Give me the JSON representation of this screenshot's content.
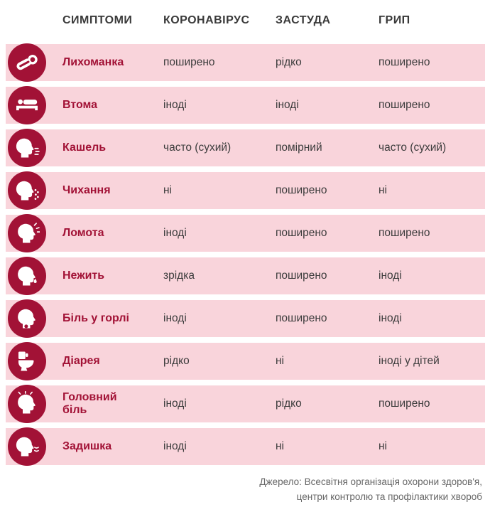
{
  "chart_data": {
    "type": "table",
    "columns": [
      "СИМПТОМИ",
      "КОРОНАВІРУС",
      "ЗАСТУДА",
      "ГРИП"
    ],
    "rows": [
      {
        "icon": "thermometer-icon",
        "symptom": "Лихоманка",
        "coronavirus": "поширено",
        "cold": "рідко",
        "flu": "поширено"
      },
      {
        "icon": "bed-icon",
        "symptom": "Втома",
        "coronavirus": "іноді",
        "cold": "іноді",
        "flu": "поширено"
      },
      {
        "icon": "coughing-face-icon",
        "symptom": "Кашель",
        "coronavirus": "часто (сухий)",
        "cold": "помірний",
        "flu": "часто (сухий)"
      },
      {
        "icon": "sneezing-face-icon",
        "symptom": "Чихання",
        "coronavirus": "ні",
        "cold": "поширено",
        "flu": "ні"
      },
      {
        "icon": "aches-face-icon",
        "symptom": "Ломота",
        "coronavirus": "іноді",
        "cold": "поширено",
        "flu": "поширено"
      },
      {
        "icon": "runny-nose-face-icon",
        "symptom": "Нежить",
        "coronavirus": "зрідка",
        "cold": "поширено",
        "flu": "іноді"
      },
      {
        "icon": "sore-throat-face-icon",
        "symptom": "Біль у горлі",
        "coronavirus": "іноді",
        "cold": "поширено",
        "flu": "іноді"
      },
      {
        "icon": "toilet-icon",
        "symptom": "Діарея",
        "coronavirus": "рідко",
        "cold": "ні",
        "flu": "іноді у дітей"
      },
      {
        "icon": "headache-face-icon",
        "symptom": "Головний біль",
        "coronavirus": "іноді",
        "cold": "рідко",
        "flu": "поширено"
      },
      {
        "icon": "breathless-face-icon",
        "symptom": "Задишка",
        "coronavirus": "іноді",
        "cold": "ні",
        "flu": "ні"
      }
    ]
  },
  "footer": {
    "line1": "Джерело: Всесвітня організація охорони здоров'я,",
    "line2": "центри контролю та профілактики хвороб"
  },
  "colors": {
    "row_bg": "#f9d4db",
    "icon_bg": "#a21236",
    "symptom_text": "#a21236",
    "header_text": "#3a3a3a",
    "cell_text": "#3c3c3c",
    "footer_text": "#666666"
  }
}
